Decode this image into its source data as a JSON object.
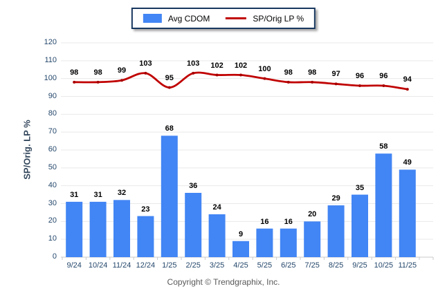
{
  "chart_data": {
    "type": "bar",
    "title": "",
    "categories": [
      "9/24",
      "10/24",
      "11/24",
      "12/24",
      "1/25",
      "2/25",
      "3/25",
      "4/25",
      "5/25",
      "6/25",
      "7/25",
      "8/25",
      "9/25",
      "10/25",
      "11/25"
    ],
    "series": [
      {
        "name": "Avg CDOM",
        "type": "bar",
        "color": "#4285F4",
        "values": [
          31,
          31,
          32,
          23,
          68,
          36,
          24,
          9,
          16,
          16,
          20,
          29,
          35,
          58,
          49
        ]
      },
      {
        "name": "SP/Orig LP %",
        "type": "line",
        "color": "#C00000",
        "values": [
          98,
          98,
          99,
          103,
          95,
          103,
          102,
          102,
          100,
          98,
          98,
          97,
          96,
          96,
          94
        ]
      }
    ],
    "xlabel": "",
    "ylabel": "SP/Orig. LP %",
    "ylim": [
      0,
      120
    ],
    "ytick_step": 10,
    "grid": true,
    "legend_position": "top-center"
  },
  "legend": {
    "items": [
      {
        "label": "Avg CDOM",
        "swatch": "bar-swatch"
      },
      {
        "label": "SP/Orig LP %",
        "swatch": "line-swatch"
      }
    ]
  },
  "footer": {
    "copyright": "Copyright © Trendgraphix, Inc."
  },
  "colors": {
    "bar": "#4285F4",
    "line": "#C00000",
    "line_marker": "#A80000",
    "grid": "#E9E9E9",
    "axis_line": "#C9C9C9",
    "tick": "#C9C9C9",
    "axis_text": "#24476B",
    "data_label": "#000000",
    "legend_border": "#17375E",
    "copyright_text": "#595959"
  }
}
